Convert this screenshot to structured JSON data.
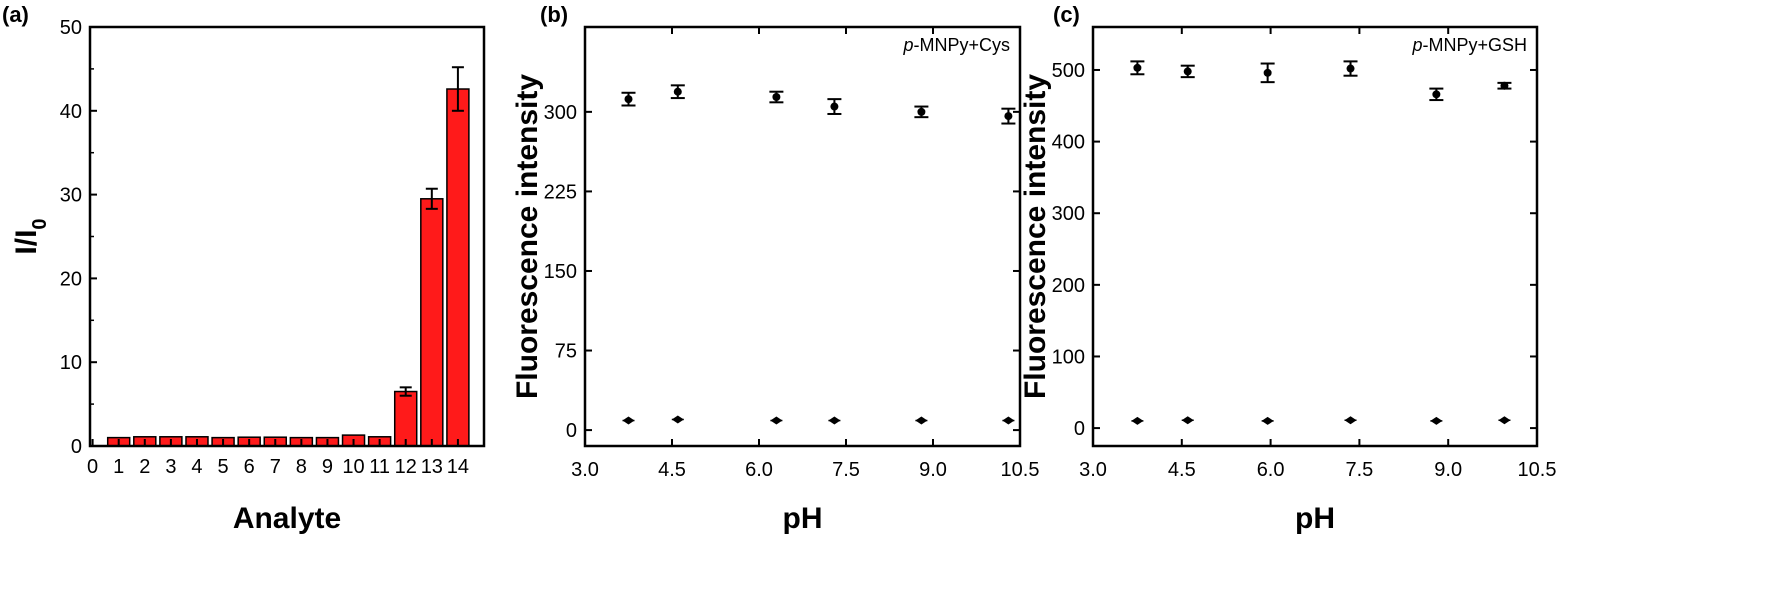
{
  "chart_data": [
    {
      "panel": "(a)",
      "type": "bar",
      "xlabel": "Analyte",
      "ylabel": "I/I",
      "ylabel_subscript": "0",
      "ylim": [
        0,
        50
      ],
      "yticks": [
        0,
        10,
        20,
        30,
        40,
        50
      ],
      "xticks": [
        "0",
        "1",
        "2",
        "3",
        "4",
        "5",
        "6",
        "7",
        "8",
        "9",
        "10",
        "11",
        "12",
        "13",
        "14"
      ],
      "categories": [
        1,
        2,
        3,
        4,
        5,
        6,
        7,
        8,
        9,
        10,
        11,
        12,
        13,
        14
      ],
      "values": [
        1.0,
        1.1,
        1.1,
        1.1,
        1.0,
        1.05,
        1.05,
        1.0,
        1.0,
        1.3,
        1.1,
        6.5,
        29.5,
        42.6
      ],
      "errors": [
        0.05,
        0.05,
        0.05,
        0.05,
        0.05,
        0.05,
        0.05,
        0.05,
        0.05,
        0.1,
        0.05,
        0.5,
        1.2,
        2.6
      ],
      "bar_color": "#ff1a1a",
      "grid": false
    },
    {
      "panel": "(b)",
      "type": "scatter",
      "annotation_italic": "p",
      "annotation_rest": "-MNPy+Cys",
      "xlabel": "pH",
      "ylabel": "Fluorescence intensity",
      "xlim": [
        3.0,
        10.5
      ],
      "ylim": [
        -15,
        380
      ],
      "xticks": [
        "3.0",
        "4.5",
        "6.0",
        "7.5",
        "9.0",
        "10.5"
      ],
      "yticks": [
        "0",
        "75",
        "150",
        "225",
        "300"
      ],
      "series": [
        {
          "x": [
            3.75,
            4.6,
            6.3,
            7.3,
            8.8,
            10.3
          ],
          "y": [
            312,
            319,
            314,
            305,
            300,
            296
          ],
          "err": [
            6,
            6,
            5,
            7,
            5,
            7
          ],
          "marker": "circle"
        },
        {
          "x": [
            3.75,
            4.6,
            6.3,
            7.3,
            8.8,
            10.3
          ],
          "y": [
            9,
            10,
            9,
            9,
            9,
            9
          ],
          "err": [
            1,
            1,
            1,
            1,
            1,
            1
          ],
          "marker": "diamond"
        }
      ],
      "grid": false
    },
    {
      "panel": "(c)",
      "type": "scatter",
      "annotation_italic": "p",
      "annotation_rest": "-MNPy+GSH",
      "xlabel": "pH",
      "ylabel": "Fluorescence intensity",
      "xlim": [
        3.0,
        10.5
      ],
      "ylim": [
        -25,
        560
      ],
      "xticks": [
        "3.0",
        "4.5",
        "6.0",
        "7.5",
        "9.0",
        "10.5"
      ],
      "yticks": [
        "0",
        "100",
        "200",
        "300",
        "400",
        "500"
      ],
      "series": [
        {
          "x": [
            3.75,
            4.6,
            5.95,
            7.35,
            8.8,
            9.95
          ],
          "y": [
            503,
            498,
            496,
            502,
            466,
            478
          ],
          "err": [
            9,
            8,
            13,
            10,
            8,
            4
          ],
          "marker": "circle"
        },
        {
          "x": [
            3.75,
            4.6,
            5.95,
            7.35,
            8.8,
            9.95
          ],
          "y": [
            10,
            11,
            10,
            11,
            10,
            11
          ],
          "err": [
            1,
            1,
            1,
            1,
            1,
            1
          ],
          "marker": "diamond"
        }
      ],
      "grid": false
    }
  ]
}
